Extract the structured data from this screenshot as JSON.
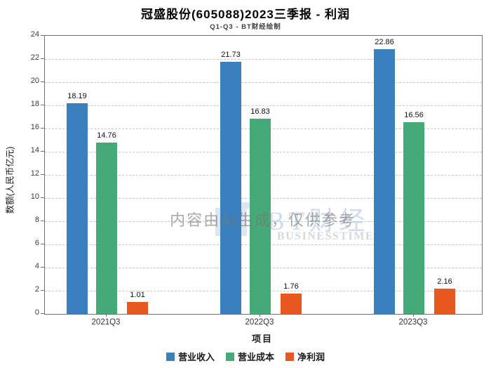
{
  "header": {
    "title": "冠盛股份(605088)2023三季报 - 利润",
    "subtitle": "Q1-Q3 - BT财经绘制"
  },
  "chart_data": {
    "type": "bar",
    "categories": [
      "2021Q3",
      "2022Q3",
      "2023Q3"
    ],
    "series": [
      {
        "name": "营业收入",
        "color": "#3a80be",
        "values": [
          18.19,
          21.73,
          22.86
        ]
      },
      {
        "name": "营业成本",
        "color": "#45aa77",
        "values": [
          14.76,
          16.83,
          16.56
        ]
      },
      {
        "name": "净利润",
        "color": "#e8571f",
        "values": [
          1.01,
          1.76,
          2.16
        ]
      }
    ],
    "xlabel": "项目",
    "ylabel": "数额(人民币亿元)",
    "ylim": [
      0,
      24
    ],
    "ytick_step": 2,
    "grid": "horizontal-dashed",
    "legend_position": "bottom"
  },
  "watermark": {
    "logo_text": "BT财经",
    "logo_subtext": "BUSINESSTIMES",
    "ai_notice": "内容由AI生成，仅供参考"
  }
}
